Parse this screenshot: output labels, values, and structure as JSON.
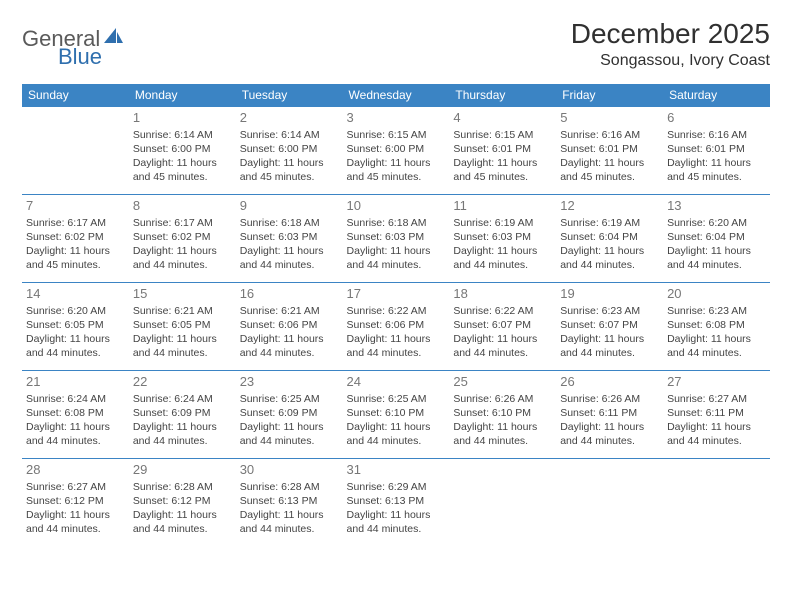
{
  "logo": {
    "text1": "General",
    "text2": "Blue",
    "accent_color": "#2f6fae"
  },
  "title": "December 2025",
  "location": "Songassou, Ivory Coast",
  "header_bg": "#3b84c4",
  "border_color": "#3b84c4",
  "weekdays": [
    "Sunday",
    "Monday",
    "Tuesday",
    "Wednesday",
    "Thursday",
    "Friday",
    "Saturday"
  ],
  "weeks": [
    [
      null,
      {
        "d": "1",
        "sr": "6:14 AM",
        "ss": "6:00 PM",
        "dl": "11 hours and 45 minutes."
      },
      {
        "d": "2",
        "sr": "6:14 AM",
        "ss": "6:00 PM",
        "dl": "11 hours and 45 minutes."
      },
      {
        "d": "3",
        "sr": "6:15 AM",
        "ss": "6:00 PM",
        "dl": "11 hours and 45 minutes."
      },
      {
        "d": "4",
        "sr": "6:15 AM",
        "ss": "6:01 PM",
        "dl": "11 hours and 45 minutes."
      },
      {
        "d": "5",
        "sr": "6:16 AM",
        "ss": "6:01 PM",
        "dl": "11 hours and 45 minutes."
      },
      {
        "d": "6",
        "sr": "6:16 AM",
        "ss": "6:01 PM",
        "dl": "11 hours and 45 minutes."
      }
    ],
    [
      {
        "d": "7",
        "sr": "6:17 AM",
        "ss": "6:02 PM",
        "dl": "11 hours and 45 minutes."
      },
      {
        "d": "8",
        "sr": "6:17 AM",
        "ss": "6:02 PM",
        "dl": "11 hours and 44 minutes."
      },
      {
        "d": "9",
        "sr": "6:18 AM",
        "ss": "6:03 PM",
        "dl": "11 hours and 44 minutes."
      },
      {
        "d": "10",
        "sr": "6:18 AM",
        "ss": "6:03 PM",
        "dl": "11 hours and 44 minutes."
      },
      {
        "d": "11",
        "sr": "6:19 AM",
        "ss": "6:03 PM",
        "dl": "11 hours and 44 minutes."
      },
      {
        "d": "12",
        "sr": "6:19 AM",
        "ss": "6:04 PM",
        "dl": "11 hours and 44 minutes."
      },
      {
        "d": "13",
        "sr": "6:20 AM",
        "ss": "6:04 PM",
        "dl": "11 hours and 44 minutes."
      }
    ],
    [
      {
        "d": "14",
        "sr": "6:20 AM",
        "ss": "6:05 PM",
        "dl": "11 hours and 44 minutes."
      },
      {
        "d": "15",
        "sr": "6:21 AM",
        "ss": "6:05 PM",
        "dl": "11 hours and 44 minutes."
      },
      {
        "d": "16",
        "sr": "6:21 AM",
        "ss": "6:06 PM",
        "dl": "11 hours and 44 minutes."
      },
      {
        "d": "17",
        "sr": "6:22 AM",
        "ss": "6:06 PM",
        "dl": "11 hours and 44 minutes."
      },
      {
        "d": "18",
        "sr": "6:22 AM",
        "ss": "6:07 PM",
        "dl": "11 hours and 44 minutes."
      },
      {
        "d": "19",
        "sr": "6:23 AM",
        "ss": "6:07 PM",
        "dl": "11 hours and 44 minutes."
      },
      {
        "d": "20",
        "sr": "6:23 AM",
        "ss": "6:08 PM",
        "dl": "11 hours and 44 minutes."
      }
    ],
    [
      {
        "d": "21",
        "sr": "6:24 AM",
        "ss": "6:08 PM",
        "dl": "11 hours and 44 minutes."
      },
      {
        "d": "22",
        "sr": "6:24 AM",
        "ss": "6:09 PM",
        "dl": "11 hours and 44 minutes."
      },
      {
        "d": "23",
        "sr": "6:25 AM",
        "ss": "6:09 PM",
        "dl": "11 hours and 44 minutes."
      },
      {
        "d": "24",
        "sr": "6:25 AM",
        "ss": "6:10 PM",
        "dl": "11 hours and 44 minutes."
      },
      {
        "d": "25",
        "sr": "6:26 AM",
        "ss": "6:10 PM",
        "dl": "11 hours and 44 minutes."
      },
      {
        "d": "26",
        "sr": "6:26 AM",
        "ss": "6:11 PM",
        "dl": "11 hours and 44 minutes."
      },
      {
        "d": "27",
        "sr": "6:27 AM",
        "ss": "6:11 PM",
        "dl": "11 hours and 44 minutes."
      }
    ],
    [
      {
        "d": "28",
        "sr": "6:27 AM",
        "ss": "6:12 PM",
        "dl": "11 hours and 44 minutes."
      },
      {
        "d": "29",
        "sr": "6:28 AM",
        "ss": "6:12 PM",
        "dl": "11 hours and 44 minutes."
      },
      {
        "d": "30",
        "sr": "6:28 AM",
        "ss": "6:13 PM",
        "dl": "11 hours and 44 minutes."
      },
      {
        "d": "31",
        "sr": "6:29 AM",
        "ss": "6:13 PM",
        "dl": "11 hours and 44 minutes."
      },
      null,
      null,
      null
    ]
  ],
  "labels": {
    "sunrise": "Sunrise:",
    "sunset": "Sunset:",
    "daylight": "Daylight:"
  }
}
